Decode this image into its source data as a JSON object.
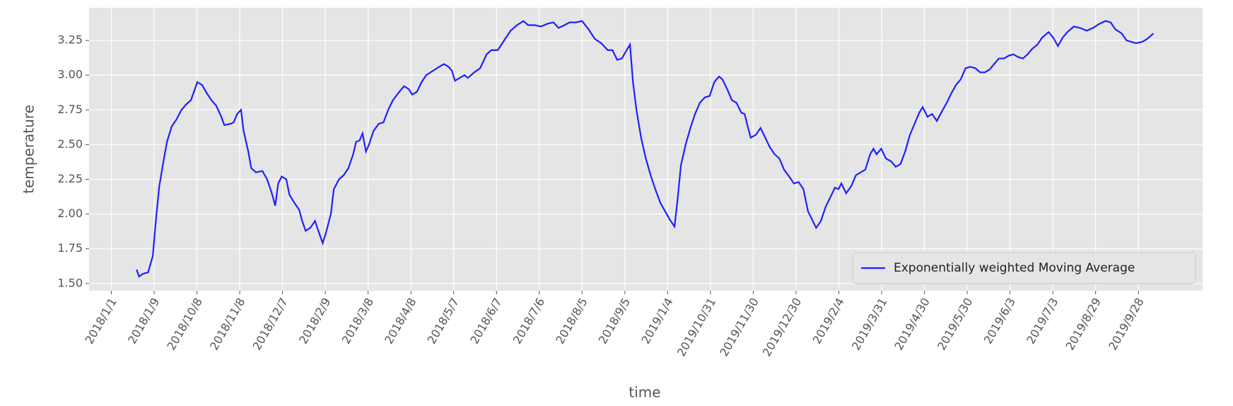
{
  "chart_data": {
    "type": "line",
    "xlabel": "time",
    "ylabel": "temperature",
    "grid": true,
    "legend": "lower right",
    "xlim": [
      -0.52,
      25.5
    ],
    "ylim": [
      1.448,
      3.485
    ],
    "xticks": [
      {
        "value": 0,
        "label": "2018/1/1"
      },
      {
        "value": 1,
        "label": "2018/1/9"
      },
      {
        "value": 2,
        "label": "2018/10/8"
      },
      {
        "value": 3,
        "label": "2018/11/8"
      },
      {
        "value": 4,
        "label": "2018/12/7"
      },
      {
        "value": 5,
        "label": "2018/2/9"
      },
      {
        "value": 6,
        "label": "2018/3/8"
      },
      {
        "value": 7,
        "label": "2018/4/8"
      },
      {
        "value": 8,
        "label": "2018/5/7"
      },
      {
        "value": 9,
        "label": "2018/6/7"
      },
      {
        "value": 10,
        "label": "2018/7/6"
      },
      {
        "value": 11,
        "label": "2018/8/5"
      },
      {
        "value": 12,
        "label": "2018/9/5"
      },
      {
        "value": 13,
        "label": "2019/1/4"
      },
      {
        "value": 14,
        "label": "2019/10/31"
      },
      {
        "value": 15,
        "label": "2019/11/30"
      },
      {
        "value": 16,
        "label": "2019/12/30"
      },
      {
        "value": 17,
        "label": "2019/2/4"
      },
      {
        "value": 18,
        "label": "2019/3/31"
      },
      {
        "value": 19,
        "label": "2019/4/30"
      },
      {
        "value": 20,
        "label": "2019/5/30"
      },
      {
        "value": 21,
        "label": "2019/6/3"
      },
      {
        "value": 22,
        "label": "2019/7/3"
      },
      {
        "value": 23,
        "label": "2019/8/29"
      },
      {
        "value": 24,
        "label": "2019/9/28"
      }
    ],
    "yticks": [
      {
        "value": 1.5,
        "label": "1.50"
      },
      {
        "value": 1.75,
        "label": "1.75"
      },
      {
        "value": 2,
        "label": "2.00"
      },
      {
        "value": 2.25,
        "label": "2.25"
      },
      {
        "value": 2.5,
        "label": "2.50"
      },
      {
        "value": 2.75,
        "label": "2.75"
      },
      {
        "value": 3,
        "label": "3.00"
      },
      {
        "value": 3.25,
        "label": "3.25"
      }
    ],
    "x": [
      0.59,
      0.65,
      0.74,
      0.86,
      0.97,
      1.04,
      1.12,
      1.23,
      1.3,
      1.41,
      1.52,
      1.64,
      1.75,
      1.86,
      1.93,
      2.01,
      2.12,
      2.23,
      2.34,
      2.45,
      2.57,
      2.64,
      2.79,
      2.86,
      2.94,
      3.03,
      3.09,
      3.2,
      3.27,
      3.38,
      3.53,
      3.64,
      3.75,
      3.83,
      3.9,
      3.98,
      4.09,
      4.16,
      4.28,
      4.39,
      4.46,
      4.54,
      4.65,
      4.76,
      4.87,
      4.94,
      5.02,
      5.13,
      5.2,
      5.32,
      5.43,
      5.54,
      5.65,
      5.72,
      5.8,
      5.87,
      5.95,
      6.02,
      6.13,
      6.25,
      6.36,
      6.47,
      6.58,
      6.73,
      6.84,
      6.95,
      7.03,
      7.14,
      7.25,
      7.36,
      7.51,
      7.66,
      7.77,
      7.88,
      7.96,
      8.03,
      8.14,
      8.25,
      8.33,
      8.48,
      8.62,
      8.77,
      8.88,
      9.03,
      9.18,
      9.33,
      9.48,
      9.63,
      9.74,
      9.89,
      10.04,
      10.19,
      10.33,
      10.45,
      10.59,
      10.71,
      10.86,
      11.0,
      11.15,
      11.3,
      11.45,
      11.6,
      11.71,
      11.82,
      11.93,
      12.04,
      12.12,
      12.19,
      12.27,
      12.38,
      12.49,
      12.6,
      12.71,
      12.83,
      12.94,
      13.05,
      13.16,
      13.23,
      13.31,
      13.42,
      13.53,
      13.64,
      13.75,
      13.87,
      13.98,
      14.09,
      14.2,
      14.28,
      14.39,
      14.5,
      14.61,
      14.72,
      14.8,
      14.87,
      14.94,
      15.06,
      15.17,
      15.28,
      15.39,
      15.5,
      15.61,
      15.72,
      15.84,
      15.95,
      16.06,
      16.17,
      16.28,
      16.39,
      16.47,
      16.58,
      16.69,
      16.8,
      16.91,
      16.99,
      17.06,
      17.17,
      17.29,
      17.4,
      17.51,
      17.62,
      17.73,
      17.81,
      17.88,
      17.99,
      18.1,
      18.22,
      18.33,
      18.44,
      18.55,
      18.66,
      18.77,
      18.88,
      18.96,
      19.07,
      19.18,
      19.29,
      19.41,
      19.52,
      19.63,
      19.74,
      19.85,
      19.96,
      20.07,
      20.19,
      20.3,
      20.41,
      20.52,
      20.63,
      20.74,
      20.86,
      20.97,
      21.08,
      21.19,
      21.3,
      21.41,
      21.52,
      21.64,
      21.75,
      21.9,
      22.01,
      22.12,
      22.23,
      22.34,
      22.49,
      22.64,
      22.79,
      22.94,
      23.09,
      23.23,
      23.35,
      23.46,
      23.61,
      23.72,
      23.83,
      23.94,
      24.09,
      24.2,
      24.35
    ],
    "series": [
      {
        "name": "Exponentially weighted Moving Average",
        "color": "#1f1fff",
        "values": [
          1.6,
          1.55,
          1.57,
          1.58,
          1.7,
          1.95,
          2.2,
          2.4,
          2.52,
          2.63,
          2.68,
          2.75,
          2.79,
          2.82,
          2.88,
          2.95,
          2.93,
          2.87,
          2.82,
          2.78,
          2.7,
          2.64,
          2.65,
          2.66,
          2.72,
          2.75,
          2.6,
          2.45,
          2.33,
          2.3,
          2.31,
          2.25,
          2.15,
          2.06,
          2.22,
          2.27,
          2.25,
          2.14,
          2.08,
          2.03,
          1.95,
          1.88,
          1.9,
          1.95,
          1.85,
          1.79,
          1.87,
          2.0,
          2.18,
          2.25,
          2.28,
          2.33,
          2.43,
          2.52,
          2.53,
          2.58,
          2.45,
          2.5,
          2.6,
          2.65,
          2.66,
          2.75,
          2.82,
          2.88,
          2.92,
          2.9,
          2.86,
          2.88,
          2.95,
          3.0,
          3.03,
          3.06,
          3.08,
          3.06,
          3.03,
          2.96,
          2.98,
          3.0,
          2.98,
          3.02,
          3.05,
          3.15,
          3.18,
          3.18,
          3.25,
          3.32,
          3.36,
          3.39,
          3.36,
          3.36,
          3.35,
          3.37,
          3.38,
          3.34,
          3.36,
          3.38,
          3.38,
          3.39,
          3.33,
          3.26,
          3.23,
          3.18,
          3.18,
          3.11,
          3.12,
          3.18,
          3.22,
          2.95,
          2.75,
          2.55,
          2.4,
          2.28,
          2.18,
          2.08,
          2.02,
          1.96,
          1.91,
          2.1,
          2.35,
          2.5,
          2.62,
          2.72,
          2.8,
          2.84,
          2.85,
          2.95,
          2.99,
          2.97,
          2.9,
          2.82,
          2.8,
          2.73,
          2.72,
          2.63,
          2.55,
          2.57,
          2.62,
          2.55,
          2.48,
          2.43,
          2.4,
          2.32,
          2.27,
          2.22,
          2.23,
          2.18,
          2.02,
          1.95,
          1.9,
          1.95,
          2.05,
          2.12,
          2.19,
          2.18,
          2.22,
          2.15,
          2.2,
          2.28,
          2.3,
          2.32,
          2.43,
          2.47,
          2.43,
          2.47,
          2.4,
          2.38,
          2.34,
          2.36,
          2.45,
          2.57,
          2.65,
          2.73,
          2.77,
          2.7,
          2.72,
          2.67,
          2.74,
          2.8,
          2.87,
          2.93,
          2.97,
          3.05,
          3.06,
          3.05,
          3.02,
          3.02,
          3.04,
          3.08,
          3.12,
          3.12,
          3.14,
          3.15,
          3.13,
          3.12,
          3.15,
          3.19,
          3.22,
          3.27,
          3.31,
          3.27,
          3.21,
          3.27,
          3.31,
          3.35,
          3.34,
          3.32,
          3.34,
          3.37,
          3.39,
          3.38,
          3.33,
          3.3,
          3.25,
          3.24,
          3.23,
          3.24,
          3.26,
          3.3
        ]
      }
    ]
  }
}
